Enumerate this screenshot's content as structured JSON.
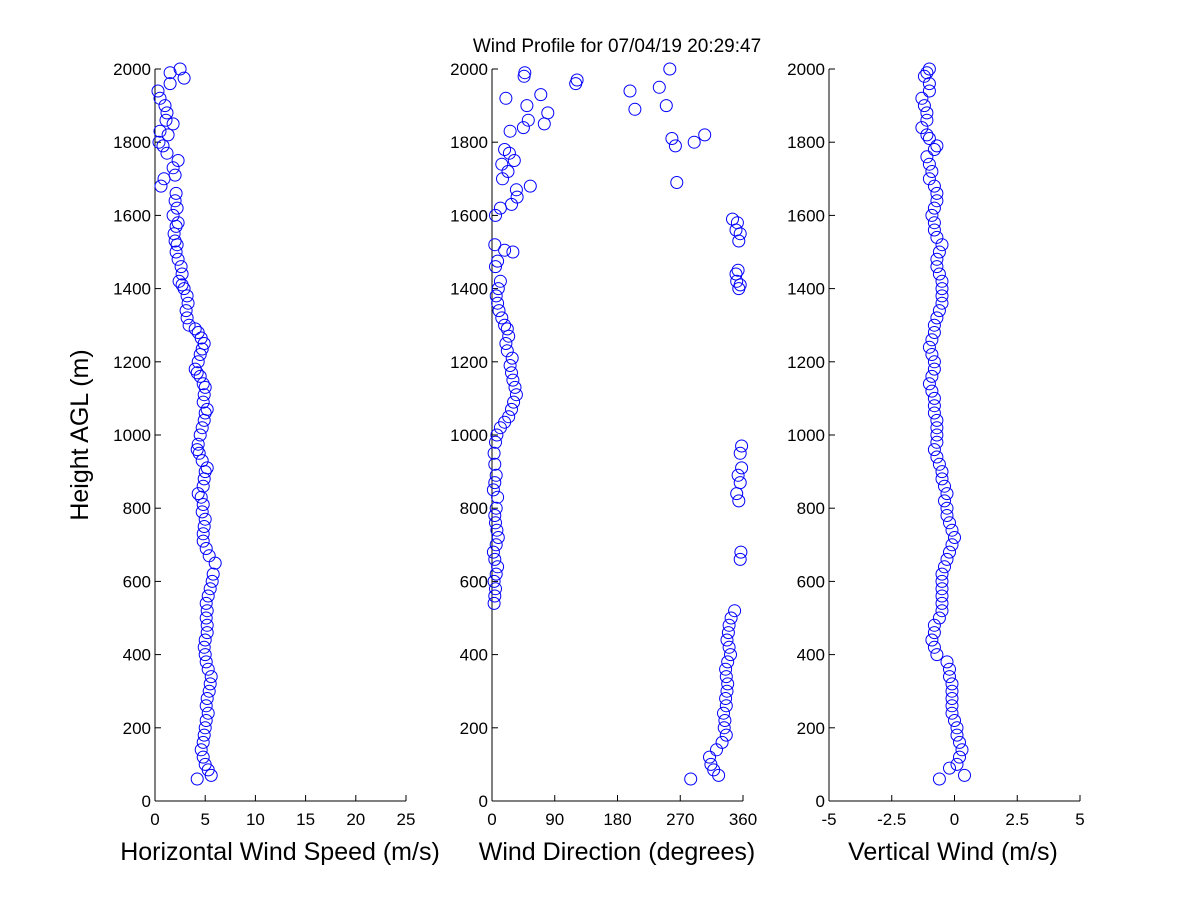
{
  "title": "Wind Profile for  07/04/19 20:29:47",
  "chart_data": [
    {
      "type": "scatter",
      "name": "horizontal-wind-speed",
      "xlabel": "Horizontal Wind Speed (m/s)",
      "ylabel": "Height AGL (m)",
      "xlim": [
        0,
        25
      ],
      "ylim": [
        0,
        2000
      ],
      "xticks": [
        0,
        5,
        10,
        15,
        20,
        25
      ],
      "xtick_labels": [
        "0",
        "5",
        "10",
        "15",
        "20",
        "25"
      ],
      "yticks": [
        0,
        200,
        400,
        600,
        800,
        1000,
        1200,
        1400,
        1600,
        1800,
        2000
      ],
      "ytick_labels": [
        "0",
        "200",
        "400",
        "600",
        "800",
        "1000",
        "1200",
        "1400",
        "1600",
        "1800",
        "2000"
      ],
      "marker_color": "#0000ff",
      "points": [
        [
          4.2,
          60
        ],
        [
          5.6,
          70
        ],
        [
          5.3,
          85
        ],
        [
          5.0,
          100
        ],
        [
          4.8,
          120
        ],
        [
          4.6,
          140
        ],
        [
          4.8,
          160
        ],
        [
          4.9,
          180
        ],
        [
          5.0,
          200
        ],
        [
          5.1,
          220
        ],
        [
          5.3,
          240
        ],
        [
          5.1,
          260
        ],
        [
          5.2,
          280
        ],
        [
          5.4,
          300
        ],
        [
          5.5,
          320
        ],
        [
          5.6,
          340
        ],
        [
          5.3,
          360
        ],
        [
          5.1,
          380
        ],
        [
          5.0,
          400
        ],
        [
          4.9,
          420
        ],
        [
          5.0,
          440
        ],
        [
          5.2,
          460
        ],
        [
          5.2,
          480
        ],
        [
          5.1,
          500
        ],
        [
          5.2,
          520
        ],
        [
          5.1,
          540
        ],
        [
          5.3,
          560
        ],
        [
          5.5,
          580
        ],
        [
          5.7,
          600
        ],
        [
          5.8,
          620
        ],
        [
          6.0,
          650
        ],
        [
          5.4,
          670
        ],
        [
          5.1,
          690
        ],
        [
          4.8,
          710
        ],
        [
          4.8,
          730
        ],
        [
          4.9,
          750
        ],
        [
          5.0,
          770
        ],
        [
          4.7,
          790
        ],
        [
          4.8,
          810
        ],
        [
          4.6,
          830
        ],
        [
          4.3,
          840
        ],
        [
          4.8,
          860
        ],
        [
          4.9,
          880
        ],
        [
          5.0,
          900
        ],
        [
          5.2,
          910
        ],
        [
          4.7,
          930
        ],
        [
          4.4,
          950
        ],
        [
          4.2,
          960
        ],
        [
          4.3,
          975
        ],
        [
          4.5,
          1000
        ],
        [
          4.7,
          1020
        ],
        [
          4.9,
          1040
        ],
        [
          5.0,
          1060
        ],
        [
          5.2,
          1070
        ],
        [
          4.8,
          1090
        ],
        [
          4.9,
          1110
        ],
        [
          5.0,
          1130
        ],
        [
          4.8,
          1140
        ],
        [
          4.5,
          1160
        ],
        [
          4.2,
          1170
        ],
        [
          4.0,
          1180
        ],
        [
          4.3,
          1200
        ],
        [
          4.5,
          1220
        ],
        [
          4.7,
          1235
        ],
        [
          4.9,
          1250
        ],
        [
          4.6,
          1265
        ],
        [
          4.3,
          1280
        ],
        [
          4.0,
          1290
        ],
        [
          3.4,
          1300
        ],
        [
          3.2,
          1320
        ],
        [
          3.1,
          1340
        ],
        [
          3.3,
          1360
        ],
        [
          3.2,
          1380
        ],
        [
          2.9,
          1400
        ],
        [
          2.7,
          1410
        ],
        [
          2.4,
          1420
        ],
        [
          2.7,
          1440
        ],
        [
          2.6,
          1460
        ],
        [
          2.3,
          1480
        ],
        [
          2.1,
          1500
        ],
        [
          2.2,
          1520
        ],
        [
          2.0,
          1530
        ],
        [
          1.9,
          1550
        ],
        [
          2.1,
          1570
        ],
        [
          2.3,
          1580
        ],
        [
          1.8,
          1600
        ],
        [
          2.2,
          1620
        ],
        [
          2.0,
          1640
        ],
        [
          2.1,
          1660
        ],
        [
          0.6,
          1680
        ],
        [
          0.9,
          1700
        ],
        [
          2.0,
          1710
        ],
        [
          1.8,
          1730
        ],
        [
          2.3,
          1750
        ],
        [
          1.2,
          1770
        ],
        [
          0.8,
          1790
        ],
        [
          0.4,
          1800
        ],
        [
          1.3,
          1820
        ],
        [
          0.5,
          1830
        ],
        [
          1.8,
          1850
        ],
        [
          1.1,
          1860
        ],
        [
          1.2,
          1880
        ],
        [
          1.0,
          1900
        ],
        [
          0.5,
          1920
        ],
        [
          0.3,
          1940
        ],
        [
          1.5,
          1960
        ],
        [
          2.9,
          1975
        ],
        [
          1.5,
          1990
        ],
        [
          2.5,
          2000
        ]
      ]
    },
    {
      "type": "scatter",
      "name": "wind-direction",
      "xlabel": "Wind Direction (degrees)",
      "ylabel": "",
      "xlim": [
        0,
        360
      ],
      "ylim": [
        0,
        2000
      ],
      "xticks": [
        0,
        90,
        180,
        270,
        360
      ],
      "xtick_labels": [
        "0",
        "90",
        "180",
        "270",
        "360"
      ],
      "yticks": [
        0,
        200,
        400,
        600,
        800,
        1000,
        1200,
        1400,
        1600,
        1800,
        2000
      ],
      "ytick_labels": [
        "0",
        "200",
        "400",
        "600",
        "800",
        "1000",
        "1200",
        "1400",
        "1600",
        "1800",
        "2000"
      ],
      "marker_color": "#0000ff",
      "points": [
        [
          285,
          60
        ],
        [
          325,
          70
        ],
        [
          318,
          85
        ],
        [
          314,
          100
        ],
        [
          312,
          120
        ],
        [
          322,
          140
        ],
        [
          330,
          160
        ],
        [
          336,
          180
        ],
        [
          333,
          200
        ],
        [
          334,
          220
        ],
        [
          332,
          240
        ],
        [
          336,
          260
        ],
        [
          335,
          280
        ],
        [
          337,
          300
        ],
        [
          338,
          320
        ],
        [
          336,
          340
        ],
        [
          335,
          360
        ],
        [
          338,
          380
        ],
        [
          342,
          400
        ],
        [
          340,
          420
        ],
        [
          337,
          440
        ],
        [
          339,
          460
        ],
        [
          340,
          480
        ],
        [
          343,
          500
        ],
        [
          348,
          520
        ],
        [
          3,
          540
        ],
        [
          4,
          560
        ],
        [
          5,
          580
        ],
        [
          3,
          600
        ],
        [
          6,
          620
        ],
        [
          8,
          640
        ],
        [
          4,
          660
        ],
        [
          2,
          680
        ],
        [
          6,
          700
        ],
        [
          9,
          720
        ],
        [
          7,
          740
        ],
        [
          5,
          760
        ],
        [
          4,
          780
        ],
        [
          6,
          800
        ],
        [
          8,
          830
        ],
        [
          2,
          850
        ],
        [
          4,
          870
        ],
        [
          6,
          890
        ],
        [
          4,
          920
        ],
        [
          3,
          950
        ],
        [
          5,
          980
        ],
        [
          7,
          1000
        ],
        [
          12,
          1020
        ],
        [
          18,
          1035
        ],
        [
          24,
          1050
        ],
        [
          28,
          1070
        ],
        [
          31,
          1090
        ],
        [
          35,
          1110
        ],
        [
          33,
          1130
        ],
        [
          30,
          1150
        ],
        [
          28,
          1170
        ],
        [
          26,
          1190
        ],
        [
          29,
          1210
        ],
        [
          22,
          1230
        ],
        [
          20,
          1250
        ],
        [
          24,
          1270
        ],
        [
          22,
          1290
        ],
        [
          18,
          1300
        ],
        [
          14,
          1320
        ],
        [
          10,
          1340
        ],
        [
          8,
          1360
        ],
        [
          6,
          1380
        ],
        [
          9,
          1400
        ],
        [
          12,
          1420
        ],
        [
          5,
          1460
        ],
        [
          8,
          1475
        ],
        [
          30,
          1500
        ],
        [
          18,
          1505
        ],
        [
          4,
          1520
        ],
        [
          5,
          1600
        ],
        [
          12,
          1620
        ],
        [
          28,
          1630
        ],
        [
          36,
          1650
        ],
        [
          35,
          1670
        ],
        [
          55,
          1680
        ],
        [
          15,
          1700
        ],
        [
          23,
          1720
        ],
        [
          14,
          1740
        ],
        [
          32,
          1750
        ],
        [
          25,
          1770
        ],
        [
          18,
          1780
        ],
        [
          45,
          1840
        ],
        [
          26,
          1830
        ],
        [
          52,
          1860
        ],
        [
          75,
          1850
        ],
        [
          80,
          1880
        ],
        [
          50,
          1900
        ],
        [
          20,
          1920
        ],
        [
          70,
          1930
        ],
        [
          46,
          1980
        ],
        [
          47,
          1990
        ],
        [
          120,
          1960
        ],
        [
          122,
          1970
        ],
        [
          198,
          1940
        ],
        [
          205,
          1890
        ],
        [
          240,
          1950
        ],
        [
          250,
          1900
        ],
        [
          255,
          2000
        ],
        [
          258,
          1810
        ],
        [
          263,
          1790
        ],
        [
          265,
          1690
        ],
        [
          290,
          1800
        ],
        [
          305,
          1820
        ],
        [
          345,
          1590
        ],
        [
          352,
          1580
        ],
        [
          350,
          1560
        ],
        [
          356,
          1550
        ],
        [
          354,
          1530
        ],
        [
          353,
          1450
        ],
        [
          350,
          1440
        ],
        [
          351,
          1420
        ],
        [
          356,
          1410
        ],
        [
          354,
          1400
        ],
        [
          358,
          970
        ],
        [
          356,
          950
        ],
        [
          358,
          910
        ],
        [
          353,
          890
        ],
        [
          356,
          870
        ],
        [
          351,
          840
        ],
        [
          354,
          820
        ],
        [
          357,
          680
        ],
        [
          356,
          660
        ]
      ]
    },
    {
      "type": "scatter",
      "name": "vertical-wind",
      "xlabel": "Vertical Wind (m/s)",
      "ylabel": "",
      "xlim": [
        -5,
        5
      ],
      "ylim": [
        0,
        2000
      ],
      "xticks": [
        -5,
        -2.5,
        0,
        2.5,
        5
      ],
      "xtick_labels": [
        "-5",
        "-2.5",
        "0",
        "2.5",
        "5"
      ],
      "yticks": [
        0,
        200,
        400,
        600,
        800,
        1000,
        1200,
        1400,
        1600,
        1800,
        2000
      ],
      "ytick_labels": [
        "0",
        "200",
        "400",
        "600",
        "800",
        "1000",
        "1200",
        "1400",
        "1600",
        "1800",
        "2000"
      ],
      "marker_color": "#0000ff",
      "points": [
        [
          -0.6,
          60
        ],
        [
          0.4,
          70
        ],
        [
          -0.2,
          90
        ],
        [
          0.1,
          100
        ],
        [
          0.2,
          120
        ],
        [
          0.3,
          140
        ],
        [
          0.2,
          160
        ],
        [
          0.1,
          180
        ],
        [
          0.1,
          200
        ],
        [
          0.0,
          220
        ],
        [
          -0.1,
          240
        ],
        [
          -0.1,
          260
        ],
        [
          -0.1,
          280
        ],
        [
          -0.1,
          300
        ],
        [
          -0.1,
          320
        ],
        [
          -0.2,
          340
        ],
        [
          -0.2,
          360
        ],
        [
          -0.3,
          380
        ],
        [
          -0.7,
          400
        ],
        [
          -0.8,
          420
        ],
        [
          -0.9,
          440
        ],
        [
          -0.8,
          460
        ],
        [
          -0.8,
          480
        ],
        [
          -0.6,
          500
        ],
        [
          -0.5,
          520
        ],
        [
          -0.5,
          540
        ],
        [
          -0.5,
          560
        ],
        [
          -0.5,
          580
        ],
        [
          -0.5,
          600
        ],
        [
          -0.5,
          620
        ],
        [
          -0.4,
          640
        ],
        [
          -0.3,
          660
        ],
        [
          -0.2,
          680
        ],
        [
          -0.1,
          700
        ],
        [
          0.0,
          720
        ],
        [
          -0.1,
          740
        ],
        [
          -0.2,
          760
        ],
        [
          -0.3,
          780
        ],
        [
          -0.3,
          800
        ],
        [
          -0.4,
          820
        ],
        [
          -0.3,
          840
        ],
        [
          -0.4,
          860
        ],
        [
          -0.5,
          880
        ],
        [
          -0.5,
          900
        ],
        [
          -0.6,
          920
        ],
        [
          -0.7,
          940
        ],
        [
          -0.8,
          960
        ],
        [
          -0.7,
          980
        ],
        [
          -0.7,
          1000
        ],
        [
          -0.7,
          1020
        ],
        [
          -0.7,
          1040
        ],
        [
          -0.8,
          1060
        ],
        [
          -0.8,
          1080
        ],
        [
          -0.8,
          1100
        ],
        [
          -0.9,
          1120
        ],
        [
          -1.0,
          1140
        ],
        [
          -0.9,
          1160
        ],
        [
          -0.8,
          1180
        ],
        [
          -0.8,
          1200
        ],
        [
          -0.9,
          1220
        ],
        [
          -1.0,
          1240
        ],
        [
          -0.9,
          1260
        ],
        [
          -0.8,
          1280
        ],
        [
          -0.8,
          1300
        ],
        [
          -0.7,
          1320
        ],
        [
          -0.6,
          1340
        ],
        [
          -0.5,
          1360
        ],
        [
          -0.5,
          1380
        ],
        [
          -0.5,
          1400
        ],
        [
          -0.5,
          1420
        ],
        [
          -0.6,
          1440
        ],
        [
          -0.7,
          1460
        ],
        [
          -0.7,
          1480
        ],
        [
          -0.6,
          1500
        ],
        [
          -0.5,
          1520
        ],
        [
          -0.7,
          1540
        ],
        [
          -0.8,
          1560
        ],
        [
          -0.8,
          1580
        ],
        [
          -0.9,
          1600
        ],
        [
          -0.8,
          1620
        ],
        [
          -0.7,
          1640
        ],
        [
          -0.7,
          1660
        ],
        [
          -0.8,
          1680
        ],
        [
          -1.0,
          1700
        ],
        [
          -0.9,
          1720
        ],
        [
          -1.0,
          1740
        ],
        [
          -1.1,
          1760
        ],
        [
          -0.8,
          1780
        ],
        [
          -0.7,
          1790
        ],
        [
          -1.0,
          1810
        ],
        [
          -1.1,
          1820
        ],
        [
          -1.3,
          1840
        ],
        [
          -1.1,
          1860
        ],
        [
          -1.1,
          1880
        ],
        [
          -1.2,
          1900
        ],
        [
          -1.3,
          1920
        ],
        [
          -1.0,
          1940
        ],
        [
          -1.0,
          1960
        ],
        [
          -1.2,
          1980
        ],
        [
          -1.1,
          1990
        ],
        [
          -1.0,
          2000
        ]
      ]
    }
  ]
}
